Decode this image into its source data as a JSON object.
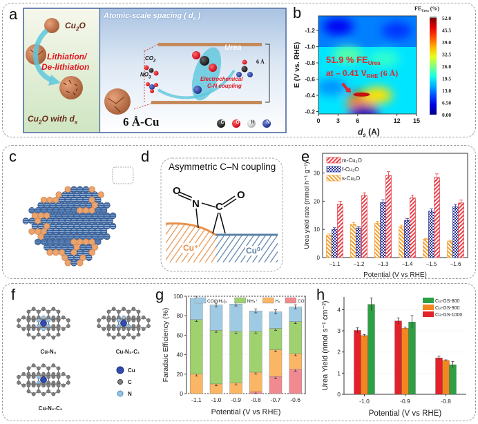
{
  "panels": {
    "a": {
      "label": "a",
      "left_top_label": "Cu2O",
      "process_label_1": "Lithiation/",
      "process_label_2": "De-lithiation",
      "bottom_label": "Cu2O with ds",
      "header": "Atomic-scale spacing ( ds )",
      "urea_label": "Urea",
      "co2_label": "CO2",
      "no3_label": "NO3-",
      "coupling_label_1": "Electrochemical",
      "coupling_label_2": "C-N coupling",
      "spacing_label": "6 Å",
      "material_label": "6 Å-Cu",
      "atoms": [
        {
          "symbol": "C",
          "color": "#1a1a1a"
        },
        {
          "symbol": "O",
          "color": "#e0141e"
        },
        {
          "symbol": "H",
          "color": "#e6e6e6"
        },
        {
          "symbol": "N",
          "color": "#2a3fa0"
        }
      ]
    },
    "b": {
      "label": "b"
    },
    "c": {
      "label": "c"
    },
    "d": {
      "label": "d",
      "title": "Asymmetric C–N coupling",
      "atom_o1": "O",
      "atom_n": "N",
      "atom_c": "C",
      "atom_o2": "O",
      "surface_left": "Cu⁺",
      "surface_right": "Cu⁰",
      "colors": {
        "cu_plus": "#e8904a",
        "cu_zero": "#5a7fa8"
      }
    },
    "e": {
      "label": "e"
    },
    "f": {
      "label": "f",
      "structures": [
        "Cu-N₄",
        "Cu-N₃-C₁",
        "Cu-N₂-C₂"
      ],
      "legend": [
        {
          "label": "Cu",
          "color": "#2f4bb0"
        },
        {
          "label": "C",
          "color": "#808080"
        },
        {
          "label": "N",
          "color": "#8ec3ea"
        }
      ]
    },
    "g": {
      "label": "g"
    },
    "h": {
      "label": "h"
    }
  },
  "chart_data": [
    {
      "id": "b",
      "type": "heatmap",
      "title": "",
      "xlabel": "ds (Å)",
      "ylabel": "E (V vs. RHE)",
      "xticks": [
        "0",
        "3",
        "6",
        "12",
        "15"
      ],
      "xtick_values": [
        0,
        3,
        6,
        12,
        15
      ],
      "yticks": [
        "-1.2",
        "-1.0",
        "-0.8",
        "-0.6",
        "-0.4",
        "-0.2"
      ],
      "ytick_values": [
        -1.2,
        -1.0,
        -0.8,
        -0.6,
        -0.4,
        -0.2
      ],
      "xlim": [
        0,
        15
      ],
      "ylim": [
        -0.17,
        -1.38
      ],
      "colorbar_title": "FEUrea (%)",
      "colorbar_ticks": [
        "52.0",
        "45.5",
        "39.0",
        "32.5",
        "26.0",
        "19.5",
        "13.0",
        "6.50",
        "0.00"
      ],
      "colorbar_range": [
        0,
        52
      ],
      "annotation_line1": "51.9 % FE",
      "annotation_line1_sub": "Urea",
      "annotation_line2": "at – 0.41 V",
      "annotation_line2_sub": "RHE",
      "annotation_line2_tail": " (6 Å)",
      "peak": {
        "x": 6,
        "y": -0.41,
        "value": 51.9
      },
      "hotspots": [
        {
          "x": 6.5,
          "y": -0.41,
          "value": 51.9
        },
        {
          "x": 6.5,
          "y": -0.3,
          "value": 38
        },
        {
          "x": 9,
          "y": -0.4,
          "value": 34
        },
        {
          "x": 4.5,
          "y": -0.9,
          "value": 24
        },
        {
          "x": 10,
          "y": -0.85,
          "value": 22
        },
        {
          "x": 2,
          "y": -0.5,
          "value": 14
        },
        {
          "x": 3,
          "y": -1.25,
          "value": 6
        },
        {
          "x": 12,
          "y": -1.2,
          "value": 9
        },
        {
          "x": 7,
          "y": -0.18,
          "value": 3
        }
      ]
    },
    {
      "id": "e",
      "type": "bar",
      "title": "",
      "xlabel": "Potential (V vs RHE)",
      "ylabel": "Urea yield rate (mmol h⁻¹ g⁻¹)",
      "categories": [
        "−1.1",
        "−1.2",
        "−1.3",
        "−1.4",
        "−1.5",
        "−1.6"
      ],
      "ylim": [
        0,
        37
      ],
      "yticks": [
        0,
        10,
        20,
        30
      ],
      "legend_position": "top-left",
      "series": [
        {
          "name": "s-Cu₂O",
          "color": "#f0a030",
          "pattern": "hatch-back",
          "values": [
            7.9,
            11.8,
            12.2,
            10.9,
            6.5,
            5.8
          ],
          "errors": [
            0.5,
            0.6,
            0.7,
            0.6,
            0.3,
            0.3
          ]
        },
        {
          "name": "f-Cu₂O",
          "color": "#2a3598",
          "pattern": "checker",
          "values": [
            10.0,
            10.5,
            19.5,
            13.2,
            16.5,
            18.0
          ],
          "errors": [
            0.6,
            0.6,
            1.0,
            0.7,
            0.8,
            0.9
          ]
        },
        {
          "name": "m-Cu₂O",
          "color": "#e8414a",
          "pattern": "hatch",
          "values": [
            19.0,
            22.0,
            29.2,
            21.2,
            28.4,
            19.4
          ],
          "errors": [
            1.0,
            1.0,
            1.3,
            1.0,
            1.3,
            1.0
          ]
        }
      ],
      "legend_order": [
        "m-Cu₂O",
        "f-Cu₂O",
        "s-Cu₂O"
      ]
    },
    {
      "id": "g",
      "type": "bar",
      "stacked": true,
      "title": "",
      "xlabel": "Potential (V vs RHE)",
      "ylabel": "Faradaic Efficiency (%)",
      "categories": [
        "-1.1",
        "-1.0",
        "-0.9",
        "-0.8",
        "-0.7",
        "-0.6"
      ],
      "ylim": [
        0,
        100
      ],
      "yticks": [
        0,
        20,
        40,
        60,
        80,
        100
      ],
      "legend_position": "top",
      "series": [
        {
          "name": "CO",
          "color": "#f08a90",
          "values": [
            0,
            0,
            0,
            2,
            17.5,
            25
          ]
        },
        {
          "name": "H₂",
          "color": "#fbb665",
          "values": [
            20,
            10,
            11,
            20,
            27.5,
            16
          ]
        },
        {
          "name": "NH₄⁺",
          "color": "#9fd16f",
          "values": [
            56,
            55,
            53,
            42,
            22,
            33
          ]
        },
        {
          "name": "CO(NH₂)₂",
          "color": "#9ecbe3",
          "values": [
            22,
            26,
            28,
            21,
            17,
            15
          ]
        }
      ],
      "legend_order": [
        "CO(NH₂)₂",
        "NH₄⁺",
        "H₂",
        "CO"
      ]
    },
    {
      "id": "h",
      "type": "bar",
      "title": "",
      "xlabel": "Potential (V vs RHE)",
      "ylabel": "Urea Yield (nmol s⁻¹ cm⁻²)",
      "categories": [
        "-1.0",
        "-0.9",
        "-0.8"
      ],
      "ylim": [
        0,
        4.6
      ],
      "yticks": [
        0,
        1,
        2,
        3,
        4
      ],
      "legend_position": "top-right",
      "series": [
        {
          "name": "Cu-GS-1000",
          "color": "#e3212a",
          "values": [
            3.02,
            3.47,
            1.72
          ],
          "errors": [
            0.12,
            0.14,
            0.08
          ]
        },
        {
          "name": "Cu-GS-900",
          "color": "#f4861f",
          "values": [
            2.78,
            3.12,
            1.6
          ],
          "errors": [
            0.05,
            0.05,
            0.03
          ]
        },
        {
          "name": "Cu-GS-800",
          "color": "#2ea043",
          "values": [
            4.25,
            3.42,
            1.4
          ],
          "errors": [
            0.3,
            0.3,
            0.15
          ]
        }
      ],
      "legend_order": [
        "Cu-GS-800",
        "Cu-GS-900",
        "Cu-GS-1000"
      ]
    }
  ]
}
